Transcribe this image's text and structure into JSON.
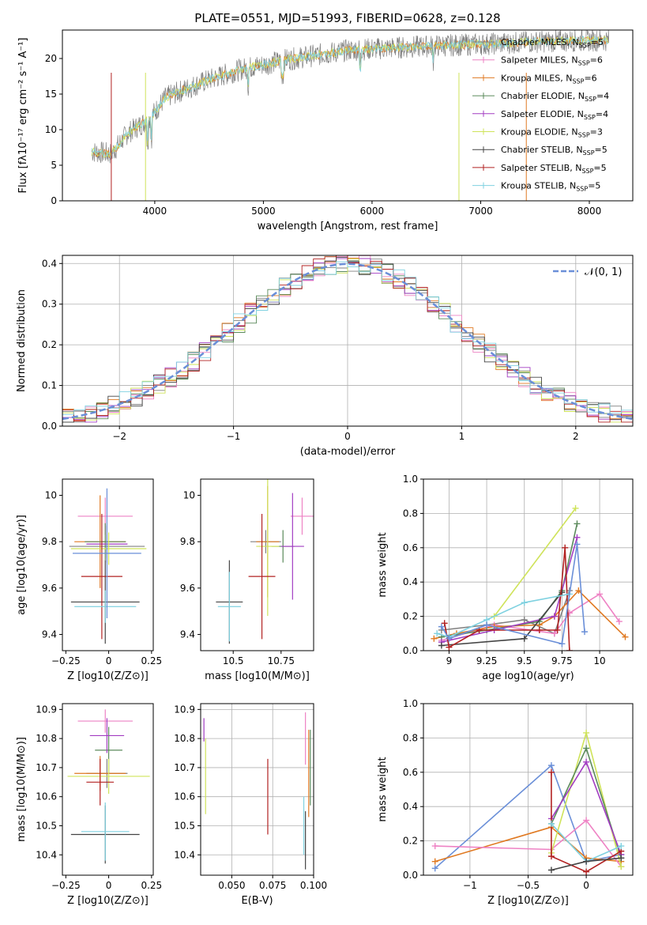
{
  "title": "PLATE=0551, MJD=51993, FIBERID=0628, z=0.128",
  "colors": {
    "Chabrier MILES": "#808080",
    "Salpeter MILES": "#ee82c4",
    "Kroupa MILES": "#e07a23",
    "Chabrier ELODIE": "#5b8a5b",
    "Salpeter ELODIE": "#a23dc2",
    "Kroupa ELODIE": "#cfe35a",
    "Chabrier STELIB": "#444444",
    "Salpeter STELIB": "#b22222",
    "Kroupa STELIB": "#7fd1e0",
    "mixed_blue": "#6a8fd8"
  },
  "chart_data": [
    {
      "type": "line",
      "panel": "spectrum",
      "xlabel": "wavelength [Angstrom, rest frame]",
      "ylabel": "Flux [fλ10⁻¹⁷ erg cm⁻² s⁻¹ A⁻¹]",
      "xlim": [
        3150,
        8400
      ],
      "ylim": [
        0,
        24
      ],
      "xticks": [
        4000,
        5000,
        6000,
        7000,
        8000
      ],
      "yticks": [
        0,
        5,
        10,
        15,
        20
      ],
      "legend": [
        "Chabrier MILES, N_SSP=5",
        "Salpeter MILES, N_SSP=6",
        "Kroupa MILES, N_SSP=6",
        "Chabrier ELODIE, N_SSP=4",
        "Salpeter ELODIE, N_SSP=4",
        "Kroupa ELODIE, N_SSP=3",
        "Chabrier STELIB, N_SSP=5",
        "Salpeter STELIB, N_SSP=5",
        "Kroupa STELIB, N_SSP=5"
      ],
      "continuum": [
        [
          3420,
          6.9
        ],
        [
          3600,
          6.6
        ],
        [
          3750,
          9.5
        ],
        [
          3950,
          11.5
        ],
        [
          4100,
          14.5
        ],
        [
          4250,
          15.5
        ],
        [
          4500,
          17.0
        ],
        [
          4800,
          18.5
        ],
        [
          5200,
          19.8
        ],
        [
          5500,
          20.5
        ],
        [
          5800,
          21.2
        ],
        [
          6200,
          21.5
        ],
        [
          6600,
          21.8
        ],
        [
          7000,
          22.0
        ],
        [
          7400,
          22.3
        ],
        [
          7800,
          22.5
        ],
        [
          8200,
          22.6
        ]
      ]
    },
    {
      "type": "line",
      "panel": "residual histogram",
      "xlabel": "(data-model)/error",
      "ylabel": "Normed distribution",
      "xlim": [
        -2.5,
        2.5
      ],
      "ylim": [
        0,
        0.42
      ],
      "xticks": [
        -2,
        -1,
        0,
        1,
        2
      ],
      "yticks": [
        0.0,
        0.1,
        0.2,
        0.3,
        0.4
      ],
      "legend": [
        "𝒩(0, 1)"
      ]
    },
    {
      "type": "scatter",
      "panel": "age vs Z",
      "xlabel": "Z [log10(Z/Z⊙)]",
      "ylabel": "age [log10(age/yr)]",
      "xlim": [
        -0.27,
        0.26
      ],
      "ylim": [
        9.33,
        10.07
      ],
      "xticks": [
        -0.25,
        0.0,
        0.25
      ],
      "yticks": [
        9.4,
        9.6,
        9.8,
        10.0
      ],
      "points": [
        {
          "x": -0.01,
          "y": 9.78,
          "xerr": 0.22,
          "yerr": 0.05,
          "c": "Chabrier MILES"
        },
        {
          "x": -0.02,
          "y": 9.91,
          "xerr": 0.16,
          "yerr": 0.08,
          "c": "Salpeter MILES"
        },
        {
          "x": -0.05,
          "y": 9.8,
          "xerr": 0.15,
          "yerr": 0.2,
          "c": "Kroupa MILES"
        },
        {
          "x": -0.02,
          "y": 9.8,
          "xerr": 0.12,
          "yerr": 0.08,
          "c": "Chabrier ELODIE"
        },
        {
          "x": -0.01,
          "y": 9.79,
          "xerr": 0.12,
          "yerr": 0.08,
          "c": "Salpeter ELODIE"
        },
        {
          "x": 0.0,
          "y": 9.77,
          "xerr": 0.22,
          "yerr": 0.07,
          "c": "Kroupa ELODIE"
        },
        {
          "x": -0.02,
          "y": 9.54,
          "xerr": 0.2,
          "yerr": 0.18,
          "c": "Chabrier STELIB"
        },
        {
          "x": -0.04,
          "y": 9.65,
          "xerr": 0.12,
          "yerr": 0.27,
          "c": "Salpeter STELIB"
        },
        {
          "x": -0.02,
          "y": 9.52,
          "xerr": 0.18,
          "yerr": 0.07,
          "c": "Kroupa STELIB"
        },
        {
          "x": -0.01,
          "y": 9.75,
          "xerr": 0.2,
          "yerr": 0.28,
          "c": "mixed_blue"
        }
      ]
    },
    {
      "type": "scatter",
      "panel": "age vs mass",
      "xlabel": "mass [log10(M/M⊙)]",
      "ylabel": "",
      "xlim": [
        10.33,
        10.92
      ],
      "ylim": [
        9.33,
        10.07
      ],
      "xticks": [
        10.5,
        10.75
      ],
      "yticks": [
        9.4,
        9.6,
        9.8,
        10.0
      ],
      "points": [
        {
          "x": 10.67,
          "y": 9.8,
          "xerr": 0.08,
          "yerr": 0.05,
          "c": "Chabrier MILES"
        },
        {
          "x": 10.86,
          "y": 9.91,
          "xerr": 0.06,
          "yerr": 0.08,
          "c": "Salpeter MILES"
        },
        {
          "x": 10.68,
          "y": 9.8,
          "xerr": 0.06,
          "yerr": 0.24,
          "c": "Kroupa MILES"
        },
        {
          "x": 10.76,
          "y": 9.78,
          "xerr": 0.06,
          "yerr": 0.07,
          "c": "Chabrier ELODIE"
        },
        {
          "x": 10.81,
          "y": 9.78,
          "xerr": 0.06,
          "yerr": 0.23,
          "c": "Salpeter ELODIE"
        },
        {
          "x": 10.68,
          "y": 9.78,
          "xerr": 0.06,
          "yerr": 0.3,
          "c": "Kroupa ELODIE"
        },
        {
          "x": 10.48,
          "y": 9.54,
          "xerr": 0.07,
          "yerr": 0.18,
          "c": "Chabrier STELIB"
        },
        {
          "x": 10.65,
          "y": 9.65,
          "xerr": 0.07,
          "yerr": 0.27,
          "c": "Salpeter STELIB"
        },
        {
          "x": 10.48,
          "y": 9.52,
          "xerr": 0.06,
          "yerr": 0.15,
          "c": "Kroupa STELIB"
        }
      ]
    },
    {
      "type": "line",
      "panel": "mass weight vs age",
      "xlabel": "age log10(age/yr)",
      "ylabel": "mass weight",
      "xlim": [
        8.83,
        10.22
      ],
      "ylim": [
        0,
        1.0
      ],
      "xticks": [
        9.0,
        9.25,
        9.5,
        9.75,
        10.0
      ],
      "yticks": [
        0.0,
        0.2,
        0.4,
        0.6,
        0.8,
        1.0
      ],
      "series": [
        {
          "c": "Chabrier MILES",
          "pts": [
            [
              8.95,
              0.12
            ],
            [
              9.25,
              0.15
            ],
            [
              9.5,
              0.18
            ],
            [
              9.7,
              0.1
            ],
            [
              9.8,
              0.35
            ]
          ]
        },
        {
          "c": "Salpeter MILES",
          "pts": [
            [
              8.95,
              0.06
            ],
            [
              9.3,
              0.15
            ],
            [
              9.7,
              0.1
            ],
            [
              9.8,
              0.22
            ],
            [
              10.0,
              0.33
            ],
            [
              10.13,
              0.17
            ]
          ]
        },
        {
          "c": "Kroupa MILES",
          "pts": [
            [
              8.9,
              0.07
            ],
            [
              9.05,
              0.1
            ],
            [
              9.3,
              0.14
            ],
            [
              9.6,
              0.15
            ],
            [
              9.7,
              0.2
            ],
            [
              9.86,
              0.35
            ],
            [
              10.17,
              0.08
            ]
          ]
        },
        {
          "c": "Chabrier ELODIE",
          "pts": [
            [
              8.95,
              0.08
            ],
            [
              9.25,
              0.12
            ],
            [
              9.6,
              0.17
            ],
            [
              9.75,
              0.35
            ],
            [
              9.85,
              0.74
            ]
          ]
        },
        {
          "c": "Salpeter ELODIE",
          "pts": [
            [
              8.95,
              0.05
            ],
            [
              9.3,
              0.12
            ],
            [
              9.7,
              0.2
            ],
            [
              9.85,
              0.66
            ]
          ]
        },
        {
          "c": "Kroupa ELODIE",
          "pts": [
            [
              9.3,
              0.2
            ],
            [
              9.84,
              0.83
            ]
          ]
        },
        {
          "c": "Chabrier STELIB",
          "pts": [
            [
              8.95,
              0.03
            ],
            [
              9.5,
              0.07
            ],
            [
              9.75,
              0.34
            ]
          ]
        },
        {
          "c": "Salpeter STELIB",
          "pts": [
            [
              8.97,
              0.16
            ],
            [
              9.0,
              0.02
            ],
            [
              9.2,
              0.12
            ],
            [
              9.6,
              0.12
            ],
            [
              9.72,
              0.12
            ],
            [
              9.77,
              0.6
            ],
            [
              9.8,
              0.0
            ]
          ]
        },
        {
          "c": "Kroupa STELIB",
          "pts": [
            [
              8.92,
              0.1
            ],
            [
              9.0,
              0.08
            ],
            [
              9.25,
              0.18
            ],
            [
              9.5,
              0.28
            ],
            [
              9.8,
              0.33
            ]
          ]
        },
        {
          "c": "mixed_blue",
          "pts": [
            [
              8.95,
              0.14
            ],
            [
              9.0,
              0.07
            ],
            [
              9.25,
              0.15
            ],
            [
              9.75,
              0.04
            ],
            [
              9.85,
              0.62
            ],
            [
              9.9,
              0.11
            ]
          ]
        }
      ]
    },
    {
      "type": "scatter",
      "panel": "mass vs Z",
      "xlabel": "Z [log10(Z/Z⊙)]",
      "ylabel": "mass [log10(M/M⊙)]",
      "xlim": [
        -0.27,
        0.26
      ],
      "ylim": [
        10.33,
        10.92
      ],
      "xticks": [
        -0.25,
        0.0,
        0.25
      ],
      "yticks": [
        10.4,
        10.5,
        10.6,
        10.7,
        10.8,
        10.9
      ],
      "points": [
        {
          "x": -0.01,
          "y": 10.68,
          "xerr": 0.12,
          "yerr": 0.05,
          "c": "Chabrier MILES"
        },
        {
          "x": -0.02,
          "y": 10.86,
          "xerr": 0.16,
          "yerr": 0.04,
          "c": "Salpeter MILES"
        },
        {
          "x": -0.05,
          "y": 10.68,
          "xerr": 0.15,
          "yerr": 0.06,
          "c": "Kroupa MILES"
        },
        {
          "x": 0.0,
          "y": 10.76,
          "xerr": 0.08,
          "yerr": 0.08,
          "c": "Chabrier ELODIE"
        },
        {
          "x": -0.01,
          "y": 10.81,
          "xerr": 0.1,
          "yerr": 0.06,
          "c": "Salpeter ELODIE"
        },
        {
          "x": 0.0,
          "y": 10.67,
          "xerr": 0.24,
          "yerr": 0.06,
          "c": "Kroupa ELODIE"
        },
        {
          "x": -0.02,
          "y": 10.47,
          "xerr": 0.2,
          "yerr": 0.1,
          "c": "Chabrier STELIB"
        },
        {
          "x": -0.05,
          "y": 10.65,
          "xerr": 0.08,
          "yerr": 0.08,
          "c": "Salpeter STELIB"
        },
        {
          "x": -0.02,
          "y": 10.48,
          "xerr": 0.14,
          "yerr": 0.1,
          "c": "Kroupa STELIB"
        }
      ]
    },
    {
      "type": "scatter",
      "panel": "mass vs E(B-V)",
      "xlabel": "E(B-V)",
      "ylabel": "",
      "xlim": [
        0.031,
        0.1
      ],
      "ylim": [
        10.33,
        10.92
      ],
      "xticks": [
        0.05,
        0.075,
        0.1
      ],
      "xticklabels": [
        "0.050",
        "0.075",
        "0.100"
      ],
      "yticks": [
        10.4,
        10.5,
        10.6,
        10.7,
        10.8,
        10.9
      ],
      "points": [
        {
          "x": 0.033,
          "y": 10.83,
          "yerr": 0.04,
          "c": "Salpeter ELODIE"
        },
        {
          "x": 0.034,
          "y": 10.67,
          "yerr": 0.13,
          "c": "Kroupa ELODIE"
        },
        {
          "x": 0.072,
          "y": 10.6,
          "yerr": 0.13,
          "c": "Salpeter STELIB"
        },
        {
          "x": 0.095,
          "y": 10.8,
          "yerr": 0.09,
          "c": "Salpeter MILES"
        },
        {
          "x": 0.097,
          "y": 10.68,
          "yerr": 0.15,
          "c": "Kroupa MILES"
        },
        {
          "x": 0.094,
          "y": 10.5,
          "yerr": 0.1,
          "c": "Kroupa STELIB"
        },
        {
          "x": 0.095,
          "y": 10.45,
          "yerr": 0.1,
          "c": "Chabrier STELIB"
        },
        {
          "x": 0.098,
          "y": 10.7,
          "yerr": 0.13,
          "c": "Chabrier ELODIE"
        }
      ]
    },
    {
      "type": "line",
      "panel": "mass weight vs Z",
      "xlabel": "Z [log10(Z/Z⊙)]",
      "ylabel": "mass weight",
      "xlim": [
        -1.4,
        0.4
      ],
      "ylim": [
        0,
        1.0
      ],
      "xticks": [
        -1.0,
        -0.5,
        0.0
      ],
      "yticks": [
        0.0,
        0.2,
        0.4,
        0.6,
        0.8,
        1.0
      ],
      "series": [
        {
          "c": "mixed_blue",
          "pts": [
            [
              -1.3,
              0.04
            ],
            [
              -0.3,
              0.64
            ],
            [
              0.0,
              0.08
            ],
            [
              0.3,
              0.12
            ]
          ]
        },
        {
          "c": "Kroupa MILES",
          "pts": [
            [
              -1.3,
              0.08
            ],
            [
              -0.3,
              0.28
            ],
            [
              0.0,
              0.1
            ],
            [
              0.3,
              0.08
            ]
          ]
        },
        {
          "c": "Salpeter MILES",
          "pts": [
            [
              -1.3,
              0.17
            ],
            [
              -0.3,
              0.15
            ],
            [
              0.0,
              0.32
            ],
            [
              0.3,
              0.05
            ]
          ]
        },
        {
          "c": "Kroupa ELODIE",
          "pts": [
            [
              -0.3,
              0.13
            ],
            [
              0.0,
              0.83
            ],
            [
              0.3,
              0.05
            ]
          ]
        },
        {
          "c": "Chabrier ELODIE",
          "pts": [
            [
              -0.3,
              0.3
            ],
            [
              0.0,
              0.74
            ],
            [
              0.3,
              0.1
            ]
          ]
        },
        {
          "c": "Salpeter ELODIE",
          "pts": [
            [
              -0.3,
              0.33
            ],
            [
              0.0,
              0.66
            ],
            [
              0.3,
              0.12
            ]
          ]
        },
        {
          "c": "Salpeter STELIB",
          "pts": [
            [
              -0.3,
              0.6
            ],
            [
              -0.3,
              0.11
            ],
            [
              0.0,
              0.02
            ],
            [
              0.3,
              0.14
            ]
          ]
        },
        {
          "c": "Kroupa STELIB",
          "pts": [
            [
              -0.3,
              0.3
            ],
            [
              0.0,
              0.08
            ],
            [
              0.3,
              0.17
            ]
          ]
        },
        {
          "c": "Chabrier STELIB",
          "pts": [
            [
              -0.3,
              0.03
            ],
            [
              0.0,
              0.08
            ],
            [
              0.3,
              0.1
            ]
          ]
        }
      ]
    }
  ]
}
